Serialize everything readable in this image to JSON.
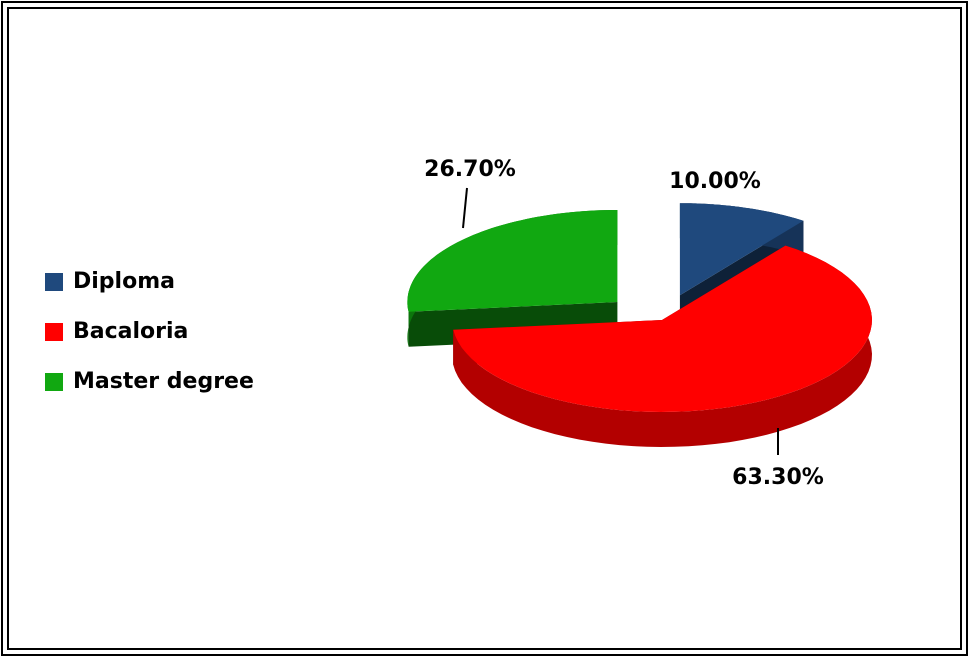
{
  "chart_data": {
    "type": "pie",
    "categories": [
      "Diploma",
      "Bacaloria",
      "Master degree"
    ],
    "values": [
      10,
      63.3,
      26.7
    ],
    "value_labels": [
      "10.00%",
      "63.30%",
      "26.70%"
    ],
    "colors": [
      "#1f497d",
      "#ff0000",
      "#11a811"
    ],
    "legend": "left"
  }
}
